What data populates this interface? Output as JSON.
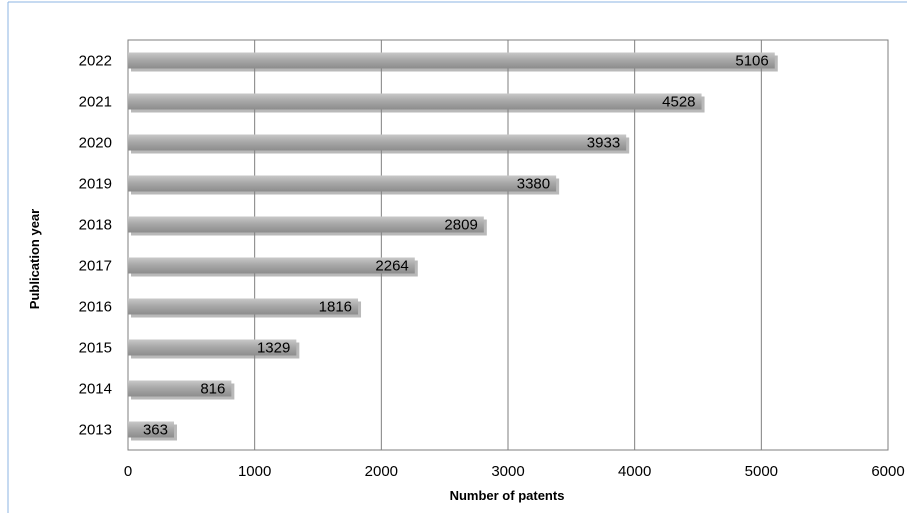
{
  "chart_data": {
    "type": "bar",
    "orientation": "horizontal",
    "categories": [
      "2022",
      "2021",
      "2020",
      "2019",
      "2018",
      "2017",
      "2016",
      "2015",
      "2014",
      "2013"
    ],
    "values": [
      5106,
      4528,
      3933,
      3380,
      2809,
      2264,
      1816,
      1329,
      816,
      363
    ],
    "data_labels": [
      "5106",
      "4528",
      "3933",
      "3380",
      "2809",
      "2264",
      "1816",
      "1329",
      "816",
      "363"
    ],
    "xlabel": "Number of patents",
    "ylabel": "Publication year",
    "xlim": [
      0,
      6000
    ],
    "x_ticks": [
      "0",
      "1000",
      "2000",
      "3000",
      "4000",
      "5000",
      "6000"
    ],
    "grid": "vertical",
    "legend": "none",
    "colors": {
      "bar": "#a6a6a6",
      "bar_shadow": "#7f7f7f",
      "gridline": "#7f7f7f",
      "frame_border": "#8eb4e3"
    }
  }
}
